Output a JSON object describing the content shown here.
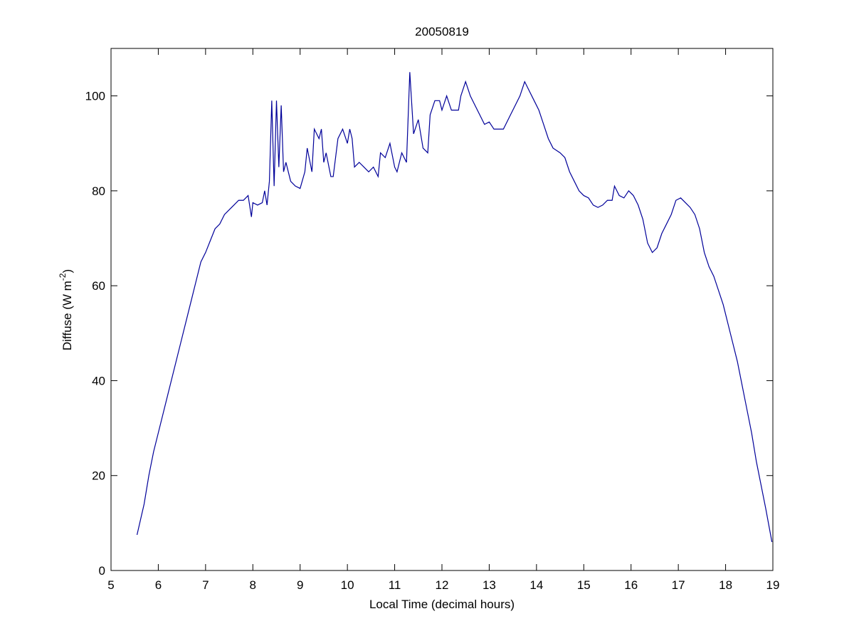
{
  "chart_data": {
    "type": "line",
    "title": "20050819",
    "xlabel": "Local Time (decimal hours)",
    "ylabel": [
      "Diffuse (W m",
      "-2",
      ")"
    ],
    "xlim": [
      5,
      19
    ],
    "xticks": [
      5,
      6,
      7,
      8,
      9,
      10,
      11,
      12,
      13,
      14,
      15,
      16,
      17,
      18,
      19
    ],
    "ylim": [
      0,
      110
    ],
    "yticks": [
      0,
      20,
      40,
      60,
      80,
      100
    ],
    "series": [
      {
        "color": "#000099",
        "x": [
          5.55,
          5.7,
          5.8,
          5.9,
          6.0,
          6.1,
          6.2,
          6.3,
          6.4,
          6.5,
          6.6,
          6.7,
          6.8,
          6.9,
          7.0,
          7.1,
          7.2,
          7.3,
          7.4,
          7.5,
          7.6,
          7.7,
          7.8,
          7.9,
          7.97,
          8.0,
          8.1,
          8.2,
          8.25,
          8.3,
          8.35,
          8.4,
          8.45,
          8.5,
          8.55,
          8.6,
          8.65,
          8.7,
          8.8,
          8.9,
          9.0,
          9.1,
          9.15,
          9.25,
          9.3,
          9.4,
          9.45,
          9.5,
          9.55,
          9.65,
          9.7,
          9.8,
          9.9,
          10.0,
          10.05,
          10.1,
          10.15,
          10.25,
          10.35,
          10.45,
          10.55,
          10.65,
          10.7,
          10.8,
          10.9,
          11.0,
          11.05,
          11.15,
          11.25,
          11.32,
          11.4,
          11.5,
          11.6,
          11.7,
          11.75,
          11.85,
          11.95,
          12.0,
          12.1,
          12.2,
          12.35,
          12.4,
          12.5,
          12.6,
          12.7,
          12.8,
          12.9,
          13.0,
          13.1,
          13.2,
          13.3,
          13.35,
          13.45,
          13.55,
          13.65,
          13.75,
          13.85,
          13.95,
          14.05,
          14.15,
          14.25,
          14.35,
          14.5,
          14.6,
          14.7,
          14.8,
          14.9,
          15.0,
          15.1,
          15.2,
          15.3,
          15.4,
          15.5,
          15.6,
          15.65,
          15.75,
          15.85,
          15.95,
          16.05,
          16.15,
          16.25,
          16.35,
          16.45,
          16.55,
          16.65,
          16.75,
          16.85,
          16.95,
          17.05,
          17.15,
          17.25,
          17.35,
          17.45,
          17.55,
          17.65,
          17.75,
          17.85,
          17.95,
          18.05,
          18.15,
          18.25,
          18.35,
          18.45,
          18.55,
          18.65,
          18.75,
          18.85,
          18.98
        ],
        "values": [
          7.5,
          14,
          20,
          25,
          29,
          33,
          37,
          41,
          45,
          49,
          53,
          57,
          61,
          65,
          67,
          69.5,
          72,
          73,
          75,
          76,
          77,
          78,
          78,
          79,
          74.5,
          77.5,
          77,
          77.5,
          80,
          77,
          82,
          99,
          81,
          99,
          85,
          98,
          84,
          86,
          82,
          81,
          80.5,
          84,
          89,
          84,
          93,
          91,
          93,
          86,
          88,
          83,
          83,
          91,
          93,
          90,
          93,
          91,
          85,
          86,
          85,
          84,
          85,
          83,
          88,
          87,
          90,
          85,
          84,
          88,
          86,
          105,
          92,
          95,
          89,
          88,
          96,
          99,
          99,
          97,
          100,
          97,
          97,
          100,
          103,
          100,
          98,
          96,
          94,
          94.5,
          93,
          93,
          93,
          94,
          96,
          98,
          100,
          103,
          101,
          99,
          97,
          94,
          91,
          89,
          88,
          87,
          84,
          82,
          80,
          79,
          78.5,
          77,
          76.5,
          77,
          78,
          78,
          81,
          79,
          78.5,
          80,
          79,
          77,
          74,
          69,
          67,
          68,
          71,
          73,
          75,
          78,
          78.5,
          77.5,
          76.5,
          75,
          72,
          67,
          64,
          62,
          59,
          56,
          52,
          48,
          44,
          39,
          34,
          29,
          23,
          18,
          13,
          6
        ]
      }
    ]
  }
}
